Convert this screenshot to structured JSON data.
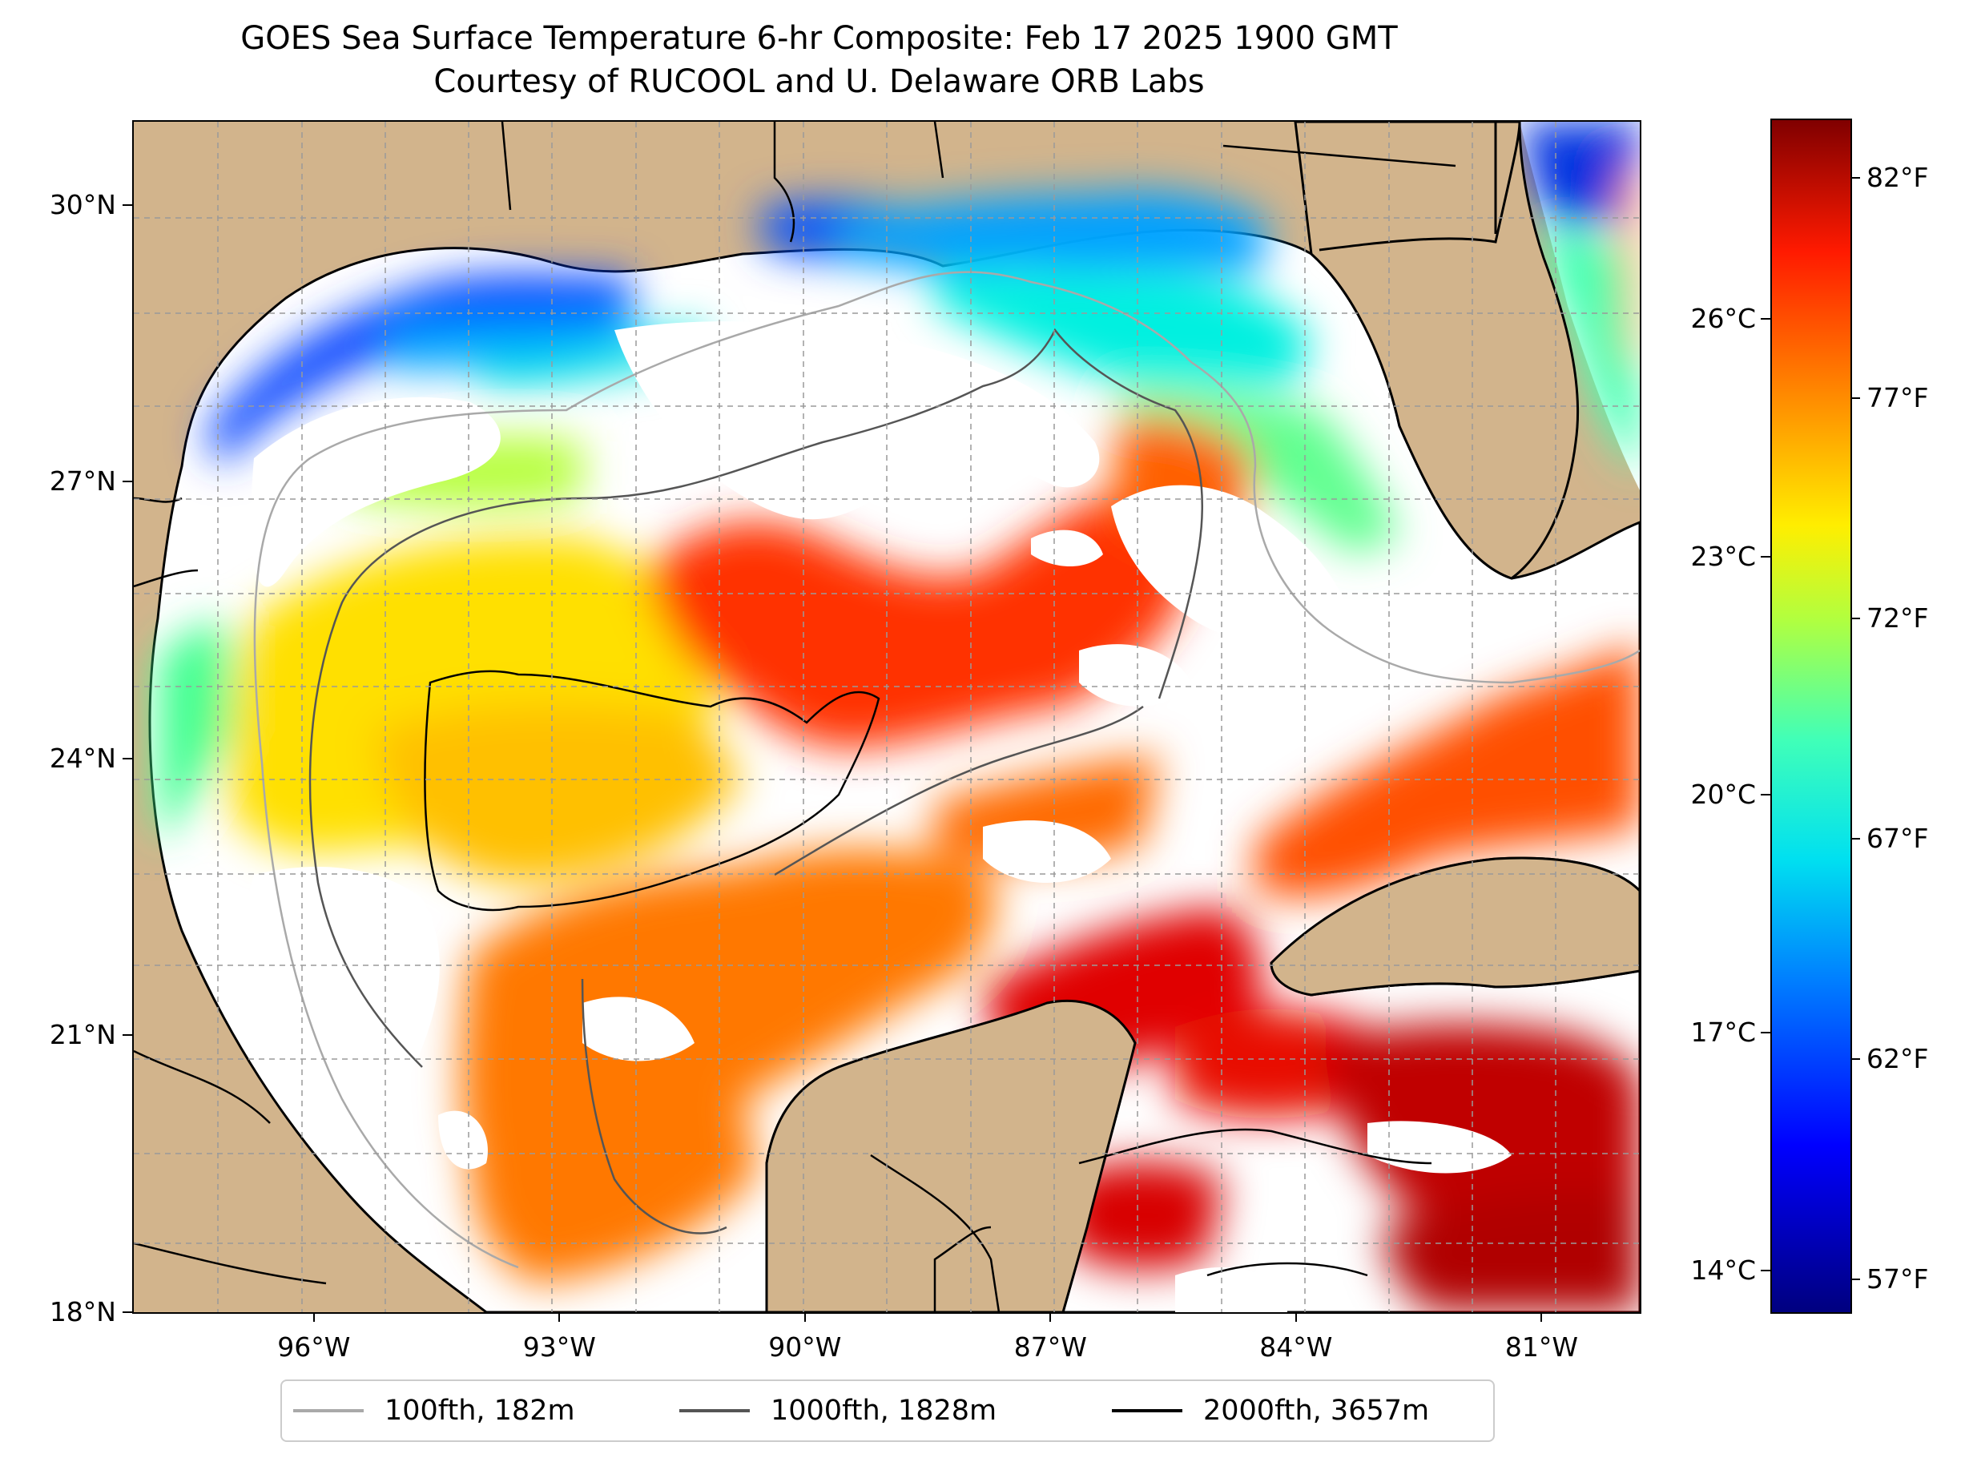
{
  "title": {
    "line1": "GOES Sea Surface Temperature 6-hr Composite: Feb 17 2025 1900 GMT",
    "line2": "Courtesy of RUCOOL and U. Delaware ORB Labs"
  },
  "map": {
    "lon_range": [
      -98,
      -80
    ],
    "lat_range": [
      18,
      31
    ],
    "lat_labels": [
      {
        "lat": 30,
        "label": "30°N"
      },
      {
        "lat": 27,
        "label": "27°N"
      },
      {
        "lat": 24,
        "label": "24°N"
      },
      {
        "lat": 21,
        "label": "21°N"
      },
      {
        "lat": 18,
        "label": "18°N"
      }
    ],
    "lon_labels": [
      {
        "lon": -96,
        "label": "96°W"
      },
      {
        "lon": -93,
        "label": "93°W"
      },
      {
        "lon": -90,
        "label": "90°W"
      },
      {
        "lon": -87,
        "label": "87°W"
      },
      {
        "lon": -84,
        "label": "84°W"
      },
      {
        "lon": -81,
        "label": "81°W"
      }
    ],
    "colors": {
      "land": "#d2b48c",
      "ocean_no_data": "#ffffff",
      "lakes": "#9fb8d9"
    }
  },
  "colorbar": {
    "colormap": "jet",
    "f_range": [
      56.3,
      83.3
    ],
    "celsius_labels": [
      {
        "value_c": 26,
        "label": "26°C"
      },
      {
        "value_c": 23,
        "label": "23°C"
      },
      {
        "value_c": 20,
        "label": "20°C"
      },
      {
        "value_c": 17,
        "label": "17°C"
      },
      {
        "value_c": 14,
        "label": "14°C"
      }
    ],
    "fahrenheit_labels": [
      {
        "value_f": 82,
        "label": "82°F"
      },
      {
        "value_f": 77,
        "label": "77°F"
      },
      {
        "value_f": 72,
        "label": "72°F"
      },
      {
        "value_f": 67,
        "label": "67°F"
      },
      {
        "value_f": 62,
        "label": "62°F"
      },
      {
        "value_f": 57,
        "label": "57°F"
      }
    ]
  },
  "legend": {
    "position": "bottom",
    "items": [
      {
        "label": "100fth, 182m",
        "color": "#a9a9a9"
      },
      {
        "label": "1000fth, 1828m",
        "color": "#555555"
      },
      {
        "label": "2000fth, 3657m",
        "color": "#000000"
      }
    ]
  }
}
